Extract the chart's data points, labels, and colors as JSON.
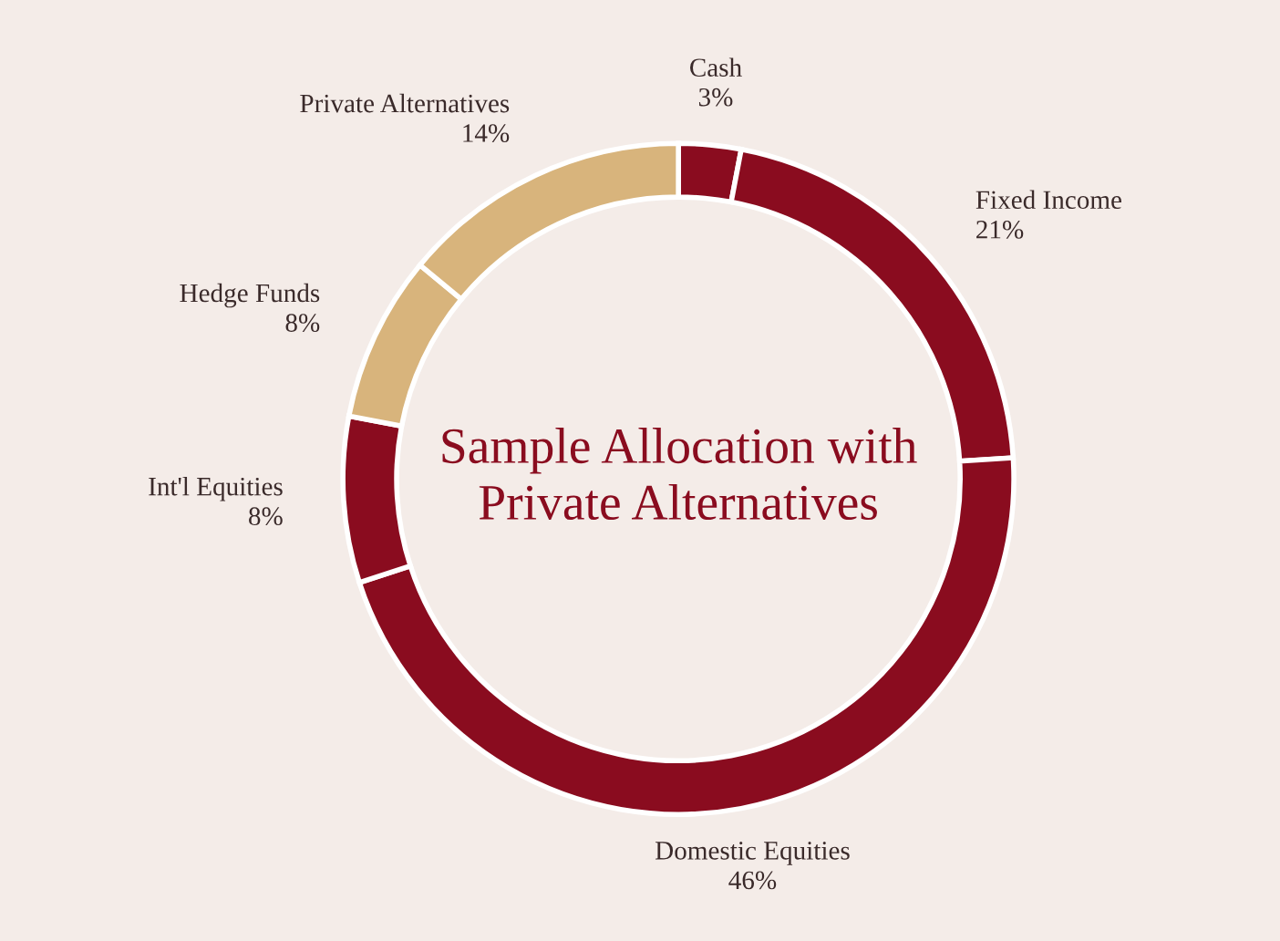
{
  "chart_data": {
    "type": "donut",
    "title": "Sample Allocation with Private Alternatives",
    "categories": [
      "Cash",
      "Fixed Income",
      "Domestic Equities",
      "Int'l Equities",
      "Hedge Funds",
      "Private Alternatives"
    ],
    "values": [
      3,
      21,
      46,
      8,
      8,
      14
    ],
    "value_labels": [
      "3%",
      "21%",
      "46%",
      "8%",
      "8%",
      "14%"
    ],
    "colors": [
      "#8a0c1f",
      "#8a0c1f",
      "#8a0c1f",
      "#8a0c1f",
      "#d8b47c",
      "#d8b47c"
    ],
    "legend": false
  }
}
